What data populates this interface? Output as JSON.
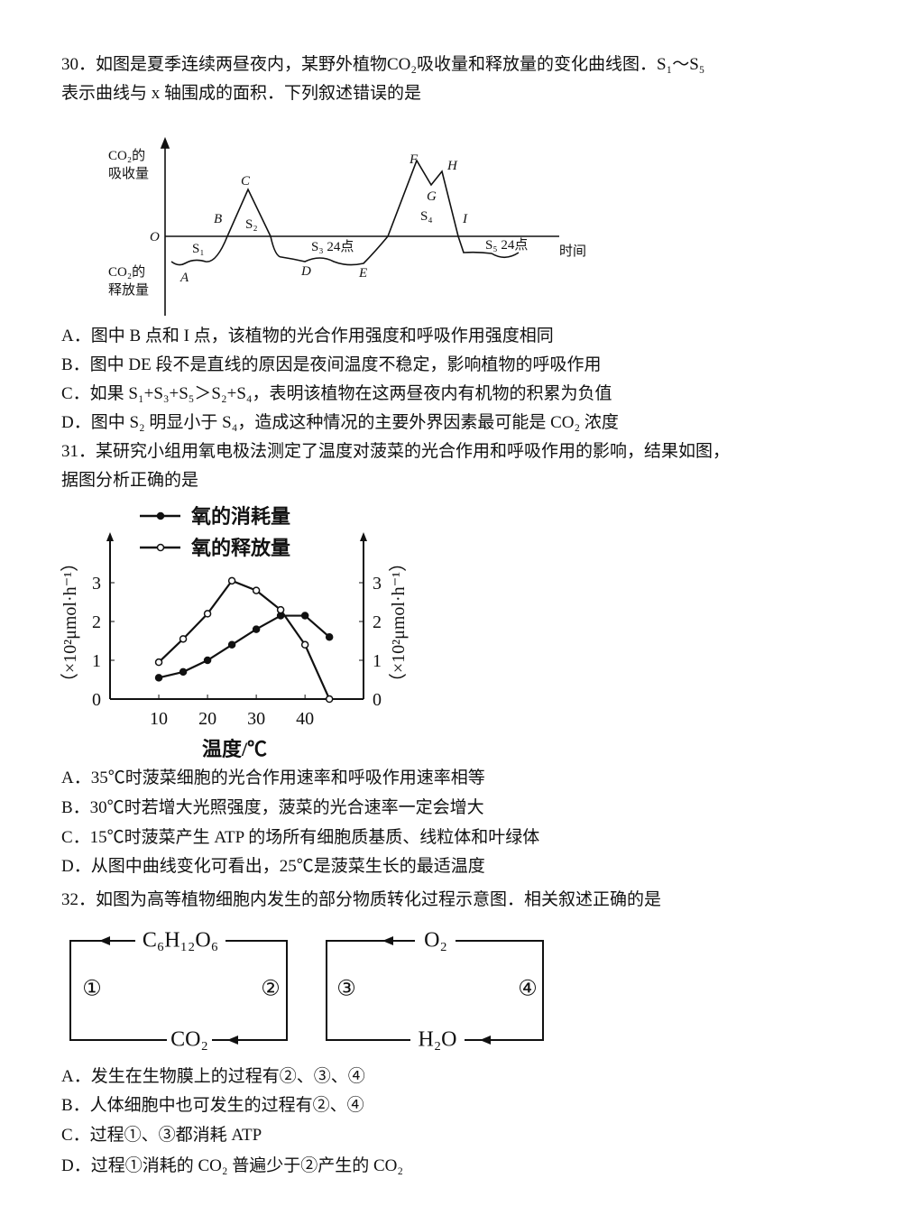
{
  "q30": {
    "stem": [
      "30．如图是夏季连续两昼夜内，某野外植物CO₂吸收量和释放量的变化曲线图．S₁～S₅",
      "表示曲线与 x 轴围成的面积．下列叙述错误的是"
    ],
    "figure": {
      "y_top": [
        "CO₂的",
        "吸收量"
      ],
      "y_bottom": [
        "CO₂的",
        "释放量"
      ],
      "origin": "O",
      "x_label": "时间",
      "points": [
        "A",
        "B",
        "C",
        "D",
        "E",
        "F",
        "G",
        "H",
        "I"
      ],
      "areas": [
        "S₁",
        "S₂",
        "S₃ 24点",
        "S₄",
        "S₅ 24点"
      ]
    },
    "options": [
      "A．图中 B 点和 I 点，该植物的光合作用强度和呼吸作用强度相同",
      "B．图中 DE 段不是直线的原因是夜间温度不稳定，影响植物的呼吸作用",
      "C．如果 S₁+S₃+S₅＞S₂+S₄，表明该植物在这两昼夜内有机物的积累为负值",
      "D．图中 S₂ 明显小于 S₄，造成这种情况的主要外界因素最可能是 CO₂ 浓度"
    ]
  },
  "q31": {
    "stem": [
      "31．某研究小组用氧电极法测定了温度对菠菜的光合作用和呼吸作用的影响，结果如图，",
      "据图分析正确的是"
    ],
    "chart_data": {
      "type": "line",
      "x_label": "温度/℃",
      "y_label": "（×10²μmol·h⁻¹）",
      "x": [
        10,
        15,
        20,
        25,
        30,
        35,
        40,
        45
      ],
      "xlim": [
        0,
        52
      ],
      "xticks": [
        10,
        20,
        30,
        40
      ],
      "ylim": [
        0,
        4
      ],
      "yticks": [
        0,
        1,
        2,
        3
      ],
      "series": [
        {
          "name": "氧的消耗量",
          "color": "#111",
          "marker": "filled",
          "values": [
            0.55,
            0.7,
            1.0,
            1.4,
            1.8,
            2.15,
            2.15,
            1.6
          ]
        },
        {
          "name": "氧的释放量",
          "color": "#111",
          "marker": "open",
          "values": [
            0.95,
            1.55,
            2.2,
            3.05,
            2.8,
            2.3,
            1.4,
            0
          ]
        }
      ]
    },
    "options": [
      "A．35℃时菠菜细胞的光合作用速率和呼吸作用速率相等",
      "B．30℃时若增大光照强度，菠菜的光合速率一定会增大",
      "C．15℃时菠菜产生 ATP 的场所有细胞质基质、线粒体和叶绿体",
      "D．从图中曲线变化可看出，25℃是菠菜生长的最适温度"
    ]
  },
  "q32": {
    "stem": [
      "32．如图为高等植物细胞内发生的部分物质转化过程示意图．相关叙述正确的是"
    ],
    "figure": {
      "left_top": "C₆H₁₂O₆",
      "left_bottom": "CO₂",
      "right_top": "O₂",
      "right_bottom": "H₂O",
      "processes": [
        "①",
        "②",
        "③",
        "④"
      ]
    },
    "options": [
      "A．发生在生物膜上的过程有②、③、④",
      "B．人体细胞中也可发生的过程有②、④",
      "C．过程①、③都消耗 ATP",
      "D．过程①消耗的 CO₂ 普遍少于②产生的 CO₂"
    ]
  }
}
